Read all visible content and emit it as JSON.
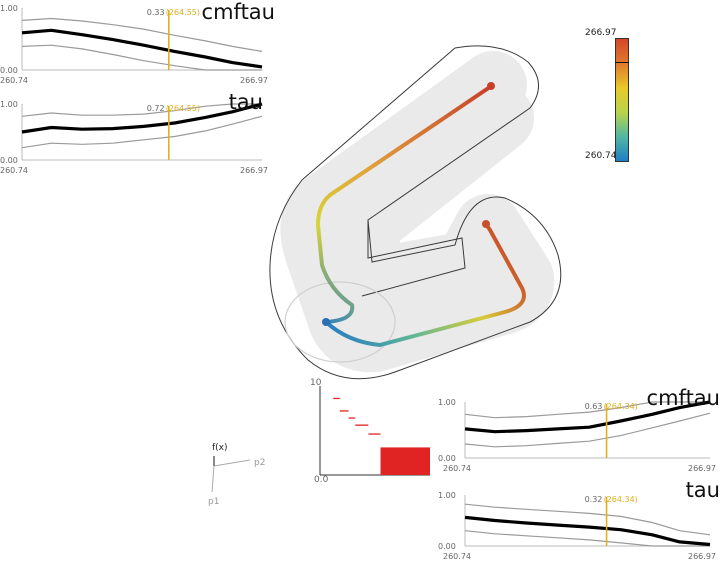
{
  "colorbar": {
    "max_label": "266.97",
    "min_label": "260.74",
    "marker_fraction": 0.8,
    "stops": [
      "#d4472a",
      "#e07a2c",
      "#e8c92a",
      "#b9d44a",
      "#52b7a2",
      "#1f7fc4"
    ]
  },
  "plots": [
    {
      "id": "top-cmftau",
      "title": "cmftau",
      "y_top_label": "1.00",
      "y_bottom_label": "0.00",
      "x_min_label": "260.74",
      "x_max_label": "266.97",
      "xlim": [
        260.74,
        266.97
      ],
      "ylim": [
        0,
        1
      ],
      "marker": {
        "value": 0.33,
        "x": 264.55,
        "value_label": "0.33",
        "x_label": "(264.55)"
      },
      "curve_x": [
        260.74,
        261.5,
        262.3,
        263.1,
        263.9,
        264.7,
        265.5,
        266.2,
        266.97
      ],
      "curve_mean": [
        0.6,
        0.64,
        0.57,
        0.49,
        0.4,
        0.3,
        0.21,
        0.12,
        0.05
      ],
      "curve_upper": [
        0.8,
        0.83,
        0.79,
        0.73,
        0.66,
        0.56,
        0.47,
        0.38,
        0.3
      ],
      "curve_lower": [
        0.38,
        0.4,
        0.34,
        0.25,
        0.15,
        0.07,
        0.0,
        0.0,
        0.0
      ]
    },
    {
      "id": "top-tau",
      "title": "tau",
      "y_top_label": "1.00",
      "y_bottom_label": "0.00",
      "x_min_label": "260.74",
      "x_max_label": "266.97",
      "xlim": [
        260.74,
        266.97
      ],
      "ylim": [
        0,
        1
      ],
      "marker": {
        "value": 0.72,
        "x": 264.55,
        "value_label": "0.72",
        "x_label": "(264.55)"
      },
      "curve_x": [
        260.74,
        261.5,
        262.3,
        263.1,
        263.9,
        264.7,
        265.5,
        266.2,
        266.97
      ],
      "curve_mean": [
        0.5,
        0.58,
        0.55,
        0.56,
        0.6,
        0.66,
        0.76,
        0.86,
        1.0
      ],
      "curve_upper": [
        0.78,
        0.84,
        0.8,
        0.8,
        0.82,
        0.88,
        0.96,
        1.0,
        1.0
      ],
      "curve_lower": [
        0.22,
        0.3,
        0.28,
        0.3,
        0.36,
        0.42,
        0.52,
        0.64,
        0.78
      ]
    },
    {
      "id": "bottom-cmftau",
      "title": "cmftau",
      "y_top_label": "1.00",
      "y_bottom_label": "0.00",
      "x_min_label": "260.74",
      "x_max_label": "266.97",
      "xlim": [
        260.74,
        266.97
      ],
      "ylim": [
        0,
        1
      ],
      "marker": {
        "value": 0.63,
        "x": 264.34,
        "value_label": "0.63",
        "x_label": "(264.34)"
      },
      "curve_x": [
        260.74,
        261.5,
        262.3,
        263.1,
        263.9,
        264.7,
        265.5,
        266.2,
        266.97
      ],
      "curve_mean": [
        0.52,
        0.47,
        0.49,
        0.52,
        0.55,
        0.66,
        0.78,
        0.9,
        1.0
      ],
      "curve_upper": [
        0.78,
        0.72,
        0.74,
        0.78,
        0.82,
        0.9,
        1.0,
        1.0,
        1.0
      ],
      "curve_lower": [
        0.25,
        0.2,
        0.22,
        0.26,
        0.3,
        0.4,
        0.54,
        0.66,
        0.8
      ]
    },
    {
      "id": "bottom-tau",
      "title": "tau",
      "y_top_label": "1.00",
      "y_bottom_label": "0.00",
      "x_min_label": "260.74",
      "x_max_label": "266.97",
      "xlim": [
        260.74,
        266.97
      ],
      "ylim": [
        0,
        1
      ],
      "marker": {
        "value": 0.32,
        "x": 264.34,
        "value_label": "0.32",
        "x_label": "(264.34)"
      },
      "curve_x": [
        260.74,
        261.5,
        262.3,
        263.1,
        263.9,
        264.7,
        265.5,
        266.2,
        266.97
      ],
      "curve_mean": [
        0.56,
        0.5,
        0.45,
        0.41,
        0.37,
        0.32,
        0.22,
        0.08,
        0.03
      ],
      "curve_upper": [
        0.82,
        0.76,
        0.72,
        0.68,
        0.64,
        0.58,
        0.46,
        0.3,
        0.22
      ],
      "curve_lower": [
        0.3,
        0.24,
        0.2,
        0.16,
        0.12,
        0.06,
        0.0,
        0.0,
        0.0
      ]
    }
  ],
  "histogram": {
    "y_max_label": "10",
    "y_min_label": "0.0",
    "ylim": [
      0,
      10
    ],
    "xlim": [
      0,
      10
    ],
    "segments": [
      {
        "x0": 1.2,
        "x1": 1.8,
        "y": 8.6
      },
      {
        "x0": 1.8,
        "x1": 2.6,
        "y": 7.2
      },
      {
        "x0": 2.6,
        "x1": 3.2,
        "y": 6.4
      },
      {
        "x0": 3.2,
        "x1": 4.4,
        "y": 5.6
      },
      {
        "x0": 4.4,
        "x1": 5.5,
        "y": 4.6
      }
    ],
    "block": {
      "x0": 5.5,
      "x1": 10.0,
      "y": 3.1
    },
    "color": "#e02424"
  },
  "axes_gizmo": {
    "up_label": "f(x)",
    "right_label": "p2",
    "down_label": "p1"
  },
  "scene": {
    "tube_color": "#e8e8e8",
    "outline_color": "#3a3a3a"
  }
}
